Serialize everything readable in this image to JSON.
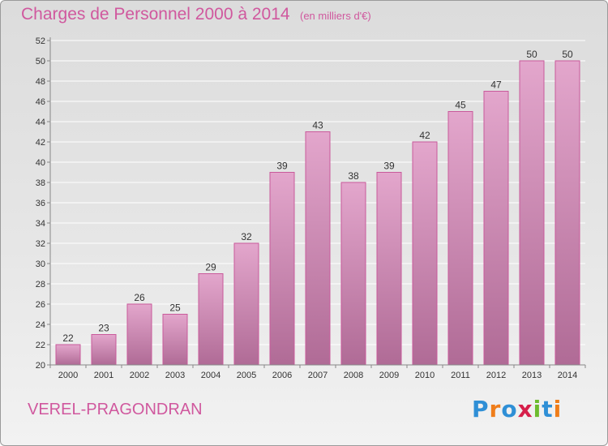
{
  "header": {
    "title": "Charges de Personnel 2000 à 2014",
    "subtitle": "(en milliers d'€)"
  },
  "footer": {
    "town": "VEREL-PRAGONDRAN",
    "logo": {
      "letters": [
        "P",
        "r",
        "o",
        "x",
        "i",
        "t",
        "i"
      ],
      "colors": [
        "#2f8fd6",
        "#ef7d1a",
        "#2f8fd6",
        "#d61f4a",
        "#6dbb2e",
        "#2f8fd6",
        "#ef7d1a"
      ]
    }
  },
  "colors": {
    "bar_top": "#e3a6cc",
    "bar_bottom": "#b06b96",
    "bar_stroke": "#c95a9b",
    "grid": "#ffffff",
    "axis": "#888888"
  },
  "chart_data": {
    "type": "bar",
    "title": "Charges de Personnel 2000 à 2014",
    "subtitle": "(en milliers d'€)",
    "categories": [
      "2000",
      "2001",
      "2002",
      "2003",
      "2004",
      "2005",
      "2006",
      "2007",
      "2008",
      "2009",
      "2010",
      "2011",
      "2012",
      "2013",
      "2014"
    ],
    "values": [
      22,
      23,
      26,
      25,
      29,
      32,
      39,
      43,
      38,
      39,
      42,
      45,
      47,
      50,
      50
    ],
    "ylim": [
      20,
      52
    ],
    "yticks": [
      20,
      22,
      24,
      26,
      28,
      30,
      32,
      34,
      36,
      38,
      40,
      42,
      44,
      46,
      48,
      50,
      52
    ],
    "grid": true,
    "xlabel": "",
    "ylabel": ""
  }
}
